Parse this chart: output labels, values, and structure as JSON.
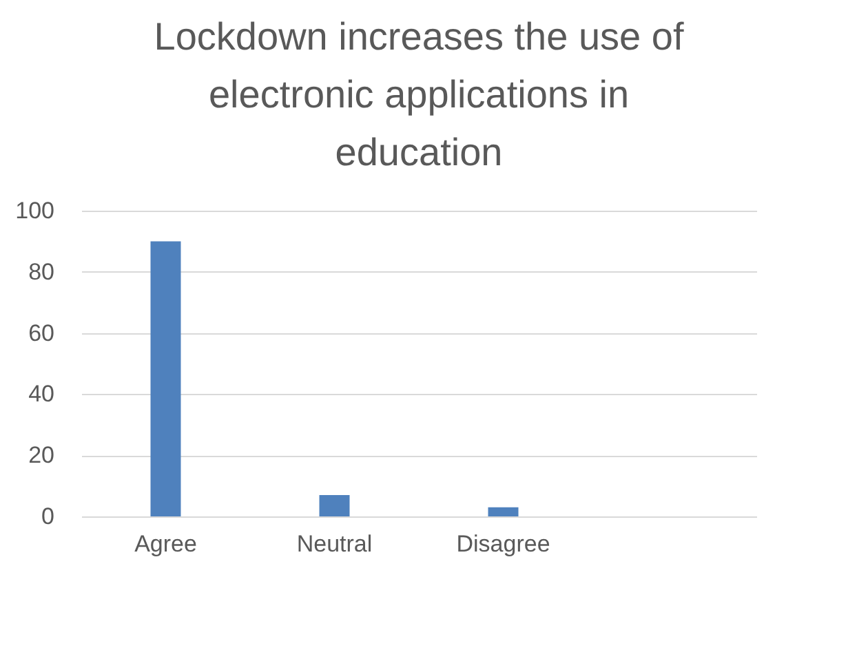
{
  "chart_data": {
    "type": "bar",
    "title": "Lockdown increases the use of electronic applications in education",
    "categories": [
      "Agree",
      "Neutral",
      "Disagree",
      null
    ],
    "values": [
      90,
      7,
      3,
      null
    ],
    "color": "#4f81bd",
    "ylim": [
      0,
      100
    ],
    "yticks": [
      0,
      20,
      40,
      60,
      80,
      100
    ],
    "grid": "y"
  }
}
